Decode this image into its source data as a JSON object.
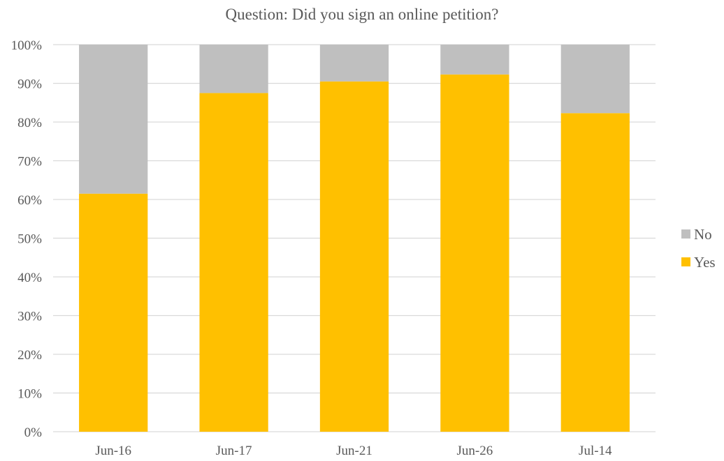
{
  "chart_data": {
    "type": "bar",
    "stacked": true,
    "title": "Question: Did you sign an online petition?",
    "xlabel": "",
    "ylabel": "",
    "categories": [
      "Jun-16",
      "Jun-17",
      "Jun-21",
      "Jun-26",
      "Jul-14"
    ],
    "series": [
      {
        "name": "Yes",
        "color": "#FFC000",
        "values": [
          61.5,
          87.5,
          90.5,
          92.3,
          82.3
        ]
      },
      {
        "name": "No",
        "color": "#BFBFBF",
        "values": [
          38.5,
          12.5,
          9.5,
          7.7,
          17.7
        ]
      }
    ],
    "ylim": [
      0,
      100
    ],
    "yticks": [
      "0%",
      "10%",
      "20%",
      "30%",
      "40%",
      "50%",
      "60%",
      "70%",
      "80%",
      "90%",
      "100%"
    ],
    "grid": true,
    "legend_position": "right",
    "legend_order": [
      "No",
      "Yes"
    ]
  }
}
